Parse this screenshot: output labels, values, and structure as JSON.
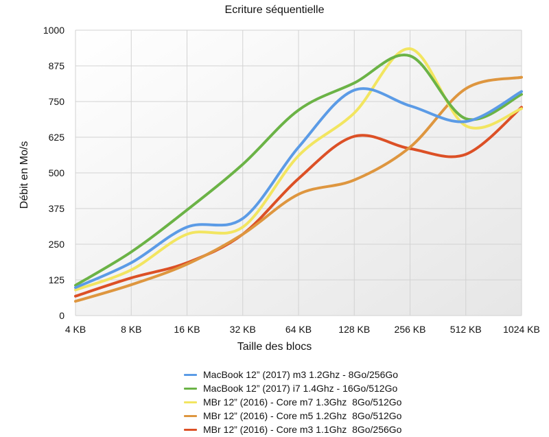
{
  "chart_data": {
    "type": "line",
    "title": "Ecriture séquentielle",
    "xlabel": "Taille des blocs",
    "ylabel": "Débit en Mo/s",
    "categories": [
      "4 KB",
      "8 KB",
      "16 KB",
      "32 KB",
      "64 KB",
      "128 KB",
      "256 KB",
      "512 KB",
      "1024 KB"
    ],
    "yticks": [
      "0",
      "125",
      "250",
      "375",
      "500",
      "625",
      "750",
      "875",
      "1000"
    ],
    "ylim": [
      0,
      1000
    ],
    "grid": true,
    "legend_position": "bottom",
    "series": [
      {
        "name": "MacBook 12” (2017) m3 1.2Ghz - 8Go/256Go",
        "color": "#5B9BE6",
        "values": [
          98,
          185,
          310,
          340,
          590,
          790,
          735,
          680,
          785
        ]
      },
      {
        "name": "MacBook 12” (2017) i7 1.4Ghz - 16Go/512Go",
        "color": "#6BB346",
        "values": [
          106,
          223,
          370,
          530,
          720,
          815,
          910,
          690,
          775
        ]
      },
      {
        "name": "MBr 12” (2016) - Core m7 1.3Ghz  8Go/512Go",
        "color": "#F2E560",
        "values": [
          90,
          160,
          285,
          310,
          560,
          710,
          935,
          665,
          725
        ]
      },
      {
        "name": "MBr 12” (2016) - Core m5 1.2Ghz  8Go/512Go",
        "color": "#DE963F",
        "values": [
          50,
          108,
          180,
          285,
          425,
          475,
          590,
          795,
          835
        ]
      },
      {
        "name": "MBr 12” (2016) - Core m3 1.1Ghz  8Go/256Go",
        "color": "#DC5026",
        "values": [
          68,
          132,
          185,
          285,
          480,
          628,
          585,
          565,
          730
        ]
      }
    ]
  }
}
